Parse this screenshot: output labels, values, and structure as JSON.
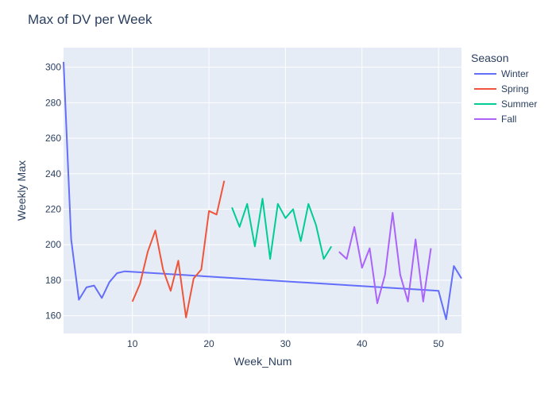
{
  "chart_data": {
    "type": "line",
    "title": "Max of DV per Week",
    "xlabel": "Week_Num",
    "ylabel": "Weekly Max",
    "xlim": [
      1,
      53
    ],
    "ylim": [
      150,
      311
    ],
    "xticks": [
      10,
      20,
      30,
      40,
      50
    ],
    "yticks": [
      160,
      180,
      200,
      220,
      240,
      260,
      280,
      300
    ],
    "grid": true,
    "legend_title": "Season",
    "legend_position": "right",
    "series": [
      {
        "name": "Winter",
        "color": "#636efa",
        "x": [
          1,
          2,
          3,
          4,
          5,
          6,
          7,
          8,
          9,
          50,
          51,
          52,
          53
        ],
        "y": [
          303,
          203,
          169,
          176,
          177,
          170,
          179,
          184,
          185,
          174,
          158,
          188,
          181
        ]
      },
      {
        "name": "Spring",
        "color": "#ef553b",
        "x": [
          10,
          11,
          12,
          13,
          14,
          15,
          16,
          17,
          18,
          19,
          20,
          21,
          22
        ],
        "y": [
          168,
          178,
          196,
          208,
          186,
          174,
          191,
          159,
          181,
          186,
          219,
          217,
          236
        ]
      },
      {
        "name": "Summer",
        "color": "#00cc96",
        "x": [
          23,
          24,
          25,
          26,
          27,
          28,
          29,
          30,
          31,
          32,
          33,
          34,
          35,
          36
        ],
        "y": [
          221,
          210,
          223,
          199,
          226,
          192,
          223,
          215,
          220,
          202,
          223,
          211,
          192,
          199
        ]
      },
      {
        "name": "Fall",
        "color": "#ab63fa",
        "x": [
          37,
          38,
          39,
          40,
          41,
          42,
          43,
          44,
          45,
          46,
          47,
          48,
          49
        ],
        "y": [
          196,
          192,
          210,
          187,
          198,
          167,
          183,
          218,
          183,
          168,
          203,
          168,
          198
        ]
      }
    ]
  }
}
